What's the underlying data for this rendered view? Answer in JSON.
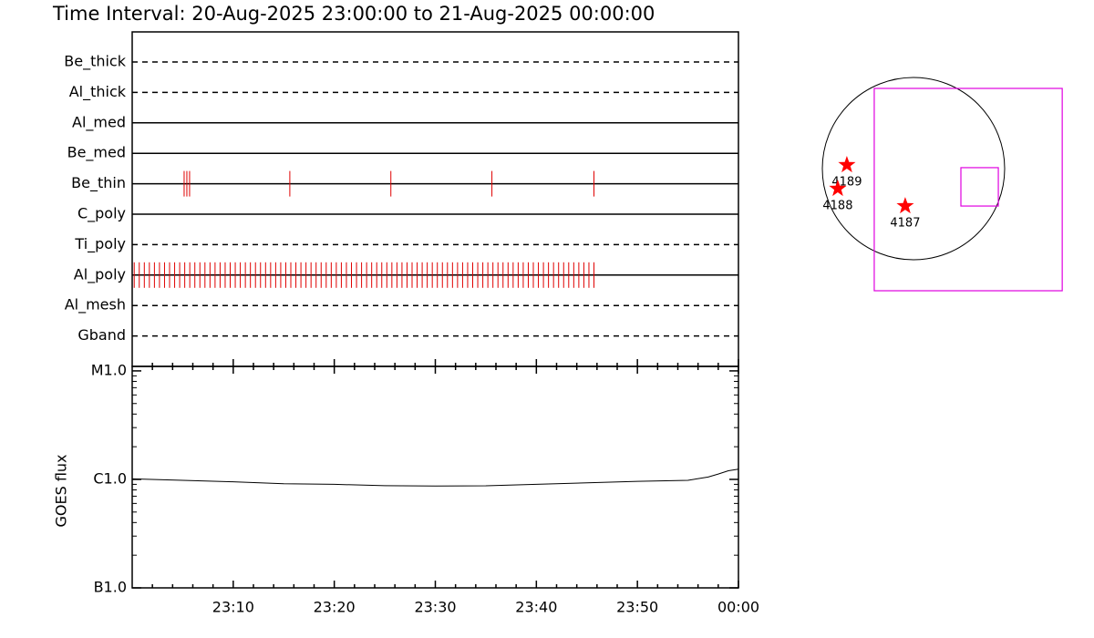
{
  "chart_data": [
    {
      "type": "timeline",
      "title": "Time Interval: 20-Aug-2025 23:00:00 to 21-Aug-2025 00:00:00",
      "xlim": [
        0,
        60
      ],
      "xticks": [
        {
          "value": 10,
          "label": "23:10"
        },
        {
          "value": 20,
          "label": "23:20"
        },
        {
          "value": 30,
          "label": "23:30"
        },
        {
          "value": 40,
          "label": "23:40"
        },
        {
          "value": 50,
          "label": "23:50"
        },
        {
          "value": 60,
          "label": "00:00"
        }
      ],
      "xminorticks": [
        2,
        4,
        6,
        8,
        12,
        14,
        16,
        18,
        22,
        24,
        26,
        28,
        32,
        34,
        36,
        38,
        42,
        44,
        46,
        48,
        52,
        54,
        56,
        58
      ],
      "color": "#e00000",
      "rows": [
        {
          "name": "Be_thick",
          "style": "dashed",
          "events": []
        },
        {
          "name": "Al_thick",
          "style": "dashed",
          "events": []
        },
        {
          "name": "Al_med",
          "style": "solid",
          "events": []
        },
        {
          "name": "Be_med",
          "style": "solid",
          "events": []
        },
        {
          "name": "Be_thin",
          "style": "solid",
          "events": [
            5.14,
            5.41,
            5.68,
            15.6,
            25.6,
            35.6,
            45.7
          ]
        },
        {
          "name": "C_poly",
          "style": "solid",
          "events": []
        },
        {
          "name": "Ti_poly",
          "style": "dashed",
          "events": []
        },
        {
          "name": "Al_poly",
          "style": "solid",
          "events": [
            0.2,
            0.7,
            1.2,
            1.7,
            2.2,
            2.7,
            3.2,
            3.7,
            4.2,
            4.7,
            5.2,
            5.7,
            6.2,
            6.7,
            7.2,
            7.7,
            8.2,
            8.7,
            9.2,
            9.7,
            10.2,
            10.7,
            11.2,
            11.7,
            12.2,
            12.7,
            13.2,
            13.7,
            14.2,
            14.7,
            15.2,
            15.7,
            16.2,
            16.7,
            17.2,
            17.7,
            18.2,
            18.7,
            19.2,
            19.7,
            20.2,
            20.7,
            21.2,
            21.7,
            22.2,
            22.7,
            23.2,
            23.7,
            24.2,
            24.7,
            25.2,
            25.7,
            26.2,
            26.7,
            27.2,
            27.7,
            28.2,
            28.7,
            29.2,
            29.7,
            30.2,
            30.7,
            31.2,
            31.7,
            32.2,
            32.7,
            33.2,
            33.7,
            34.2,
            34.7,
            35.2,
            35.7,
            36.2,
            36.7,
            37.2,
            37.7,
            38.2,
            38.7,
            39.2,
            39.7,
            40.2,
            40.7,
            41.2,
            41.7,
            42.2,
            42.7,
            43.2,
            43.7,
            44.2,
            44.7,
            45.2,
            45.7
          ]
        },
        {
          "name": "Al_mesh",
          "style": "dashed",
          "events": []
        },
        {
          "name": "Gband",
          "style": "dashed",
          "events": []
        }
      ]
    },
    {
      "type": "line",
      "ylabel": "GOES flux",
      "log": true,
      "x": [
        0,
        5,
        10,
        15,
        20,
        25,
        30,
        35,
        40,
        45,
        50,
        55,
        57,
        58,
        59,
        60
      ],
      "values": [
        1.01e-06,
        9.8e-07,
        9.5e-07,
        9.1e-07,
        9e-07,
        8.75e-07,
        8.7e-07,
        8.73e-07,
        9e-07,
        9.3e-07,
        9.6e-07,
        9.8e-07,
        1.05e-06,
        1.12e-06,
        1.2e-06,
        1.24e-06
      ],
      "color": "#000000",
      "xlim": [
        0,
        60
      ],
      "ylim": [
        1e-07,
        1.1e-05
      ],
      "yticks": [
        {
          "value": 1e-07,
          "label": "B1.0"
        },
        {
          "value": 1e-06,
          "label": "C1.0"
        },
        {
          "value": 1e-05,
          "label": "M1.0"
        }
      ],
      "yminorticks": [
        2e-07,
        3e-07,
        4e-07,
        5e-07,
        6e-07,
        7e-07,
        8e-07,
        9e-07,
        2e-06,
        3e-06,
        4e-06,
        5e-06,
        6e-06,
        7e-06,
        8e-06,
        9e-06
      ],
      "xticks": [
        {
          "value": 10,
          "label": "23:10"
        },
        {
          "value": 20,
          "label": "23:20"
        },
        {
          "value": 30,
          "label": "23:30"
        },
        {
          "value": 40,
          "label": "23:40"
        },
        {
          "value": 50,
          "label": "23:50"
        },
        {
          "value": 60,
          "label": "00:00"
        }
      ],
      "xminorticks": [
        2,
        4,
        6,
        8,
        12,
        14,
        16,
        18,
        22,
        24,
        26,
        28,
        32,
        34,
        36,
        38,
        42,
        44,
        46,
        48,
        52,
        54,
        56,
        58
      ]
    },
    {
      "type": "map",
      "sun_radius": 950,
      "box_color": "#e000e0",
      "star_color": "#ff0000",
      "boxes": [
        {
          "x": [
            -409,
            1550
          ],
          "y": [
            -1273,
            836
          ]
        },
        {
          "x": [
            494,
            884
          ],
          "y": [
            -390,
            10
          ]
        }
      ],
      "regions": [
        {
          "label": "4189",
          "x": -694,
          "y": 38
        },
        {
          "label": "4188",
          "x": -789,
          "y": -209
        },
        {
          "label": "4187",
          "x": -86,
          "y": -390
        }
      ]
    }
  ]
}
